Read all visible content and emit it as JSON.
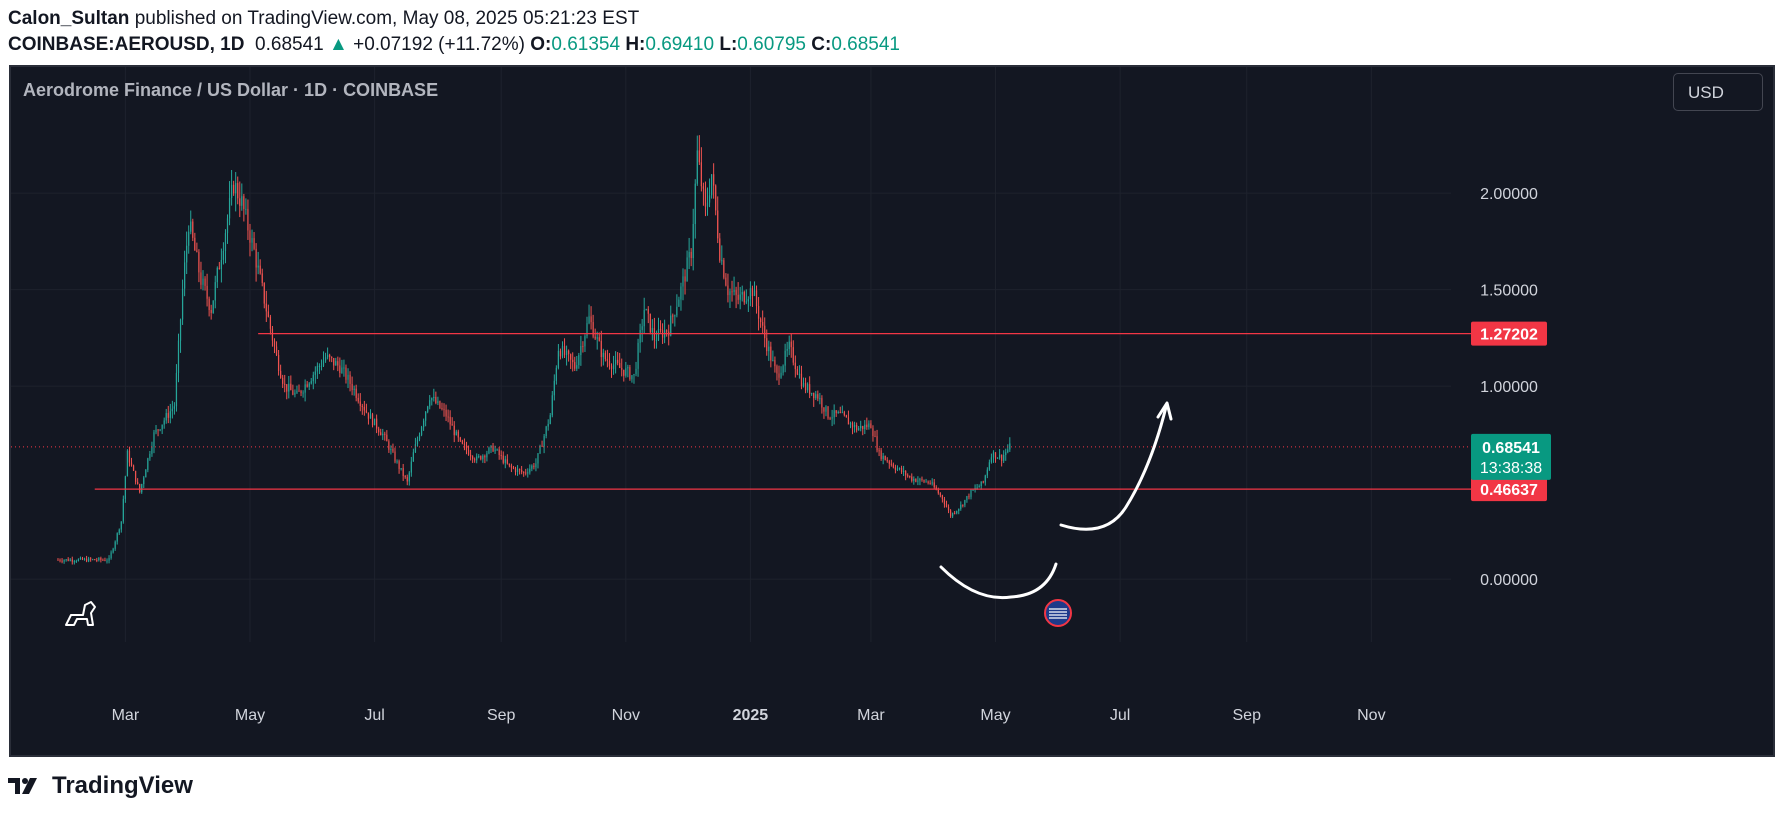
{
  "header": {
    "author": "Calon_Sultan",
    "published_text": "published on TradingView.com, May 08, 2025 05:21:23 EST",
    "symbol": "COINBASE:AEROUSD, 1D",
    "last": "0.68541",
    "change_arrow": "▲",
    "change": "+0.07192 (+11.72%)",
    "open_label": "O:",
    "open": "0.61354",
    "high_label": "H:",
    "high": "0.69410",
    "low_label": "L:",
    "low": "0.60795",
    "close_label": "C:",
    "close": "0.68541"
  },
  "chart": {
    "title": "Aerodrome Finance / US Dollar · 1D · COINBASE",
    "currency_button": "USD",
    "price_label_bg": "#089981",
    "countdown": "13:38:38",
    "colors": {
      "up": "#26a69a",
      "down": "#ef5350",
      "line": "#f23645",
      "background": "#131722"
    }
  },
  "footer": {
    "brand": "TradingView"
  },
  "chart_data": {
    "type": "candlestick",
    "symbol": "COINBASE:AEROUSD",
    "interval": "1D",
    "title": "Aerodrome Finance / US Dollar · 1D · COINBASE",
    "ylim": [
      -0.3,
      2.55
    ],
    "y_ticks": [
      "2.00000",
      "1.50000",
      "1.00000",
      "0.00000"
    ],
    "y_tick_values": [
      2.0,
      1.5,
      1.0,
      0.0
    ],
    "x_ticks": [
      "Mar",
      "May",
      "Jul",
      "Sep",
      "Nov",
      "2025",
      "Mar",
      "May",
      "Jul",
      "Sep",
      "Nov"
    ],
    "x_tick_dates": [
      "2024-03-01",
      "2024-05-01",
      "2024-07-01",
      "2024-09-01",
      "2024-11-01",
      "2025-01-01",
      "2025-03-01",
      "2025-05-01",
      "2025-07-01",
      "2025-09-01",
      "2025-11-01"
    ],
    "x_range": [
      "2024-01-05",
      "2025-12-10"
    ],
    "horizontal_lines": [
      {
        "price": 1.27202,
        "label": "1.27202",
        "start": "2024-05-05"
      },
      {
        "price": 0.46637,
        "label": "0.46637",
        "start": "2024-02-15"
      }
    ],
    "last_price": {
      "price": 0.68541,
      "label": "0.68541"
    },
    "price_path": [
      [
        "2024-01-28",
        0.1
      ],
      [
        "2024-02-22",
        0.1
      ],
      [
        "2024-02-28",
        0.3
      ],
      [
        "2024-03-02",
        0.65
      ],
      [
        "2024-03-08",
        0.45
      ],
      [
        "2024-03-15",
        0.75
      ],
      [
        "2024-03-25",
        0.9
      ],
      [
        "2024-03-29",
        1.5
      ],
      [
        "2024-04-01",
        1.85
      ],
      [
        "2024-04-07",
        1.55
      ],
      [
        "2024-04-12",
        1.4
      ],
      [
        "2024-04-18",
        1.75
      ],
      [
        "2024-04-23",
        2.05
      ],
      [
        "2024-04-27",
        1.95
      ],
      [
        "2024-05-03",
        1.7
      ],
      [
        "2024-05-08",
        1.45
      ],
      [
        "2024-05-14",
        1.15
      ],
      [
        "2024-05-18",
        1.0
      ],
      [
        "2024-05-24",
        0.95
      ],
      [
        "2024-05-31",
        1.05
      ],
      [
        "2024-06-07",
        1.15
      ],
      [
        "2024-06-14",
        1.1
      ],
      [
        "2024-06-20",
        1.0
      ],
      [
        "2024-06-28",
        0.85
      ],
      [
        "2024-07-05",
        0.75
      ],
      [
        "2024-07-12",
        0.6
      ],
      [
        "2024-07-17",
        0.5
      ],
      [
        "2024-07-20",
        0.65
      ],
      [
        "2024-07-28",
        0.95
      ],
      [
        "2024-08-05",
        0.85
      ],
      [
        "2024-08-12",
        0.7
      ],
      [
        "2024-08-20",
        0.62
      ],
      [
        "2024-08-28",
        0.68
      ],
      [
        "2024-09-05",
        0.58
      ],
      [
        "2024-09-12",
        0.55
      ],
      [
        "2024-09-18",
        0.6
      ],
      [
        "2024-09-25",
        0.85
      ],
      [
        "2024-09-29",
        1.2
      ],
      [
        "2024-10-07",
        1.1
      ],
      [
        "2024-10-14",
        1.35
      ],
      [
        "2024-10-21",
        1.15
      ],
      [
        "2024-10-28",
        1.1
      ],
      [
        "2024-11-05",
        1.05
      ],
      [
        "2024-11-10",
        1.4
      ],
      [
        "2024-11-15",
        1.25
      ],
      [
        "2024-11-22",
        1.3
      ],
      [
        "2024-11-28",
        1.5
      ],
      [
        "2024-12-03",
        1.7
      ],
      [
        "2024-12-06",
        2.2
      ],
      [
        "2024-12-10",
        1.9
      ],
      [
        "2024-12-13",
        2.1
      ],
      [
        "2024-12-17",
        1.7
      ],
      [
        "2024-12-21",
        1.5
      ],
      [
        "2024-12-26",
        1.45
      ],
      [
        "2025-01-02",
        1.5
      ],
      [
        "2025-01-08",
        1.25
      ],
      [
        "2025-01-14",
        1.05
      ],
      [
        "2025-01-20",
        1.2
      ],
      [
        "2025-01-27",
        1.0
      ],
      [
        "2025-02-03",
        0.95
      ],
      [
        "2025-02-08",
        0.85
      ],
      [
        "2025-02-14",
        0.85
      ],
      [
        "2025-02-22",
        0.78
      ],
      [
        "2025-03-01",
        0.8
      ],
      [
        "2025-03-05",
        0.65
      ],
      [
        "2025-03-13",
        0.58
      ],
      [
        "2025-03-21",
        0.52
      ],
      [
        "2025-03-30",
        0.5
      ],
      [
        "2025-04-05",
        0.42
      ],
      [
        "2025-04-09",
        0.33
      ],
      [
        "2025-04-14",
        0.38
      ],
      [
        "2025-04-19",
        0.45
      ],
      [
        "2025-04-25",
        0.5
      ],
      [
        "2025-04-29",
        0.65
      ],
      [
        "2025-05-04",
        0.63
      ],
      [
        "2025-05-08",
        0.68541
      ]
    ]
  }
}
